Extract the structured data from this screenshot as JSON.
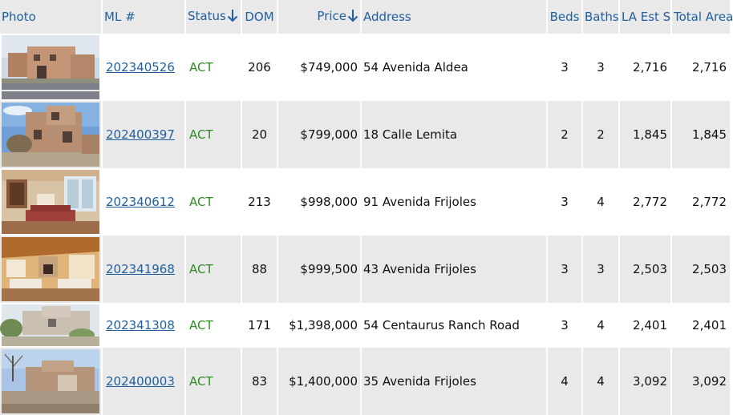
{
  "headers": {
    "photo": "Photo",
    "ml": "ML #",
    "status": "Status",
    "dom": "DOM",
    "price": "Price",
    "address": "Address",
    "beds": "Beds",
    "baths": "Baths",
    "la_est": "LA Est S",
    "total_area": "Total Area"
  },
  "sort_icons": {
    "status": "arrow-down-icon",
    "price": "arrow-down-icon"
  },
  "colors": {
    "header_text": "#1e5f9e",
    "link": "#1e5f9e",
    "status_active": "#2e8b22",
    "row_alt": "#e9e9e9"
  },
  "rows": [
    {
      "ml": "202340526",
      "status": "ACT",
      "dom": "206",
      "price": "$749,000",
      "address": "54 Avenida Aldea",
      "beds": "3",
      "baths": "3",
      "la_est": "2,716",
      "total_area": "2,716",
      "photo": "house-exterior-photo"
    },
    {
      "ml": "202400397",
      "status": "ACT",
      "dom": "20",
      "price": "$799,000",
      "address": "18 Calle Lemita",
      "beds": "2",
      "baths": "2",
      "la_est": "1,845",
      "total_area": "1,845",
      "photo": "house-exterior-photo"
    },
    {
      "ml": "202340612",
      "status": "ACT",
      "dom": "213",
      "price": "$998,000",
      "address": "91 Avenida Frijoles",
      "beds": "3",
      "baths": "4",
      "la_est": "2,772",
      "total_area": "2,772",
      "photo": "interior-living-room-photo"
    },
    {
      "ml": "202341968",
      "status": "ACT",
      "dom": "88",
      "price": "$999,500",
      "address": "43 Avenida Frijoles",
      "beds": "3",
      "baths": "3",
      "la_est": "2,503",
      "total_area": "2,503",
      "photo": "interior-living-room-photo"
    },
    {
      "ml": "202341308",
      "status": "ACT",
      "dom": "171",
      "price": "$1,398,000",
      "address": "54 Centaurus Ranch Road",
      "beds": "3",
      "baths": "4",
      "la_est": "2,401",
      "total_area": "2,401",
      "photo": "house-exterior-photo"
    },
    {
      "ml": "202400003",
      "status": "ACT",
      "dom": "83",
      "price": "$1,400,000",
      "address": "35 Avenida Frijoles",
      "beds": "4",
      "baths": "4",
      "la_est": "3,092",
      "total_area": "3,092",
      "photo": "house-exterior-photo"
    }
  ]
}
